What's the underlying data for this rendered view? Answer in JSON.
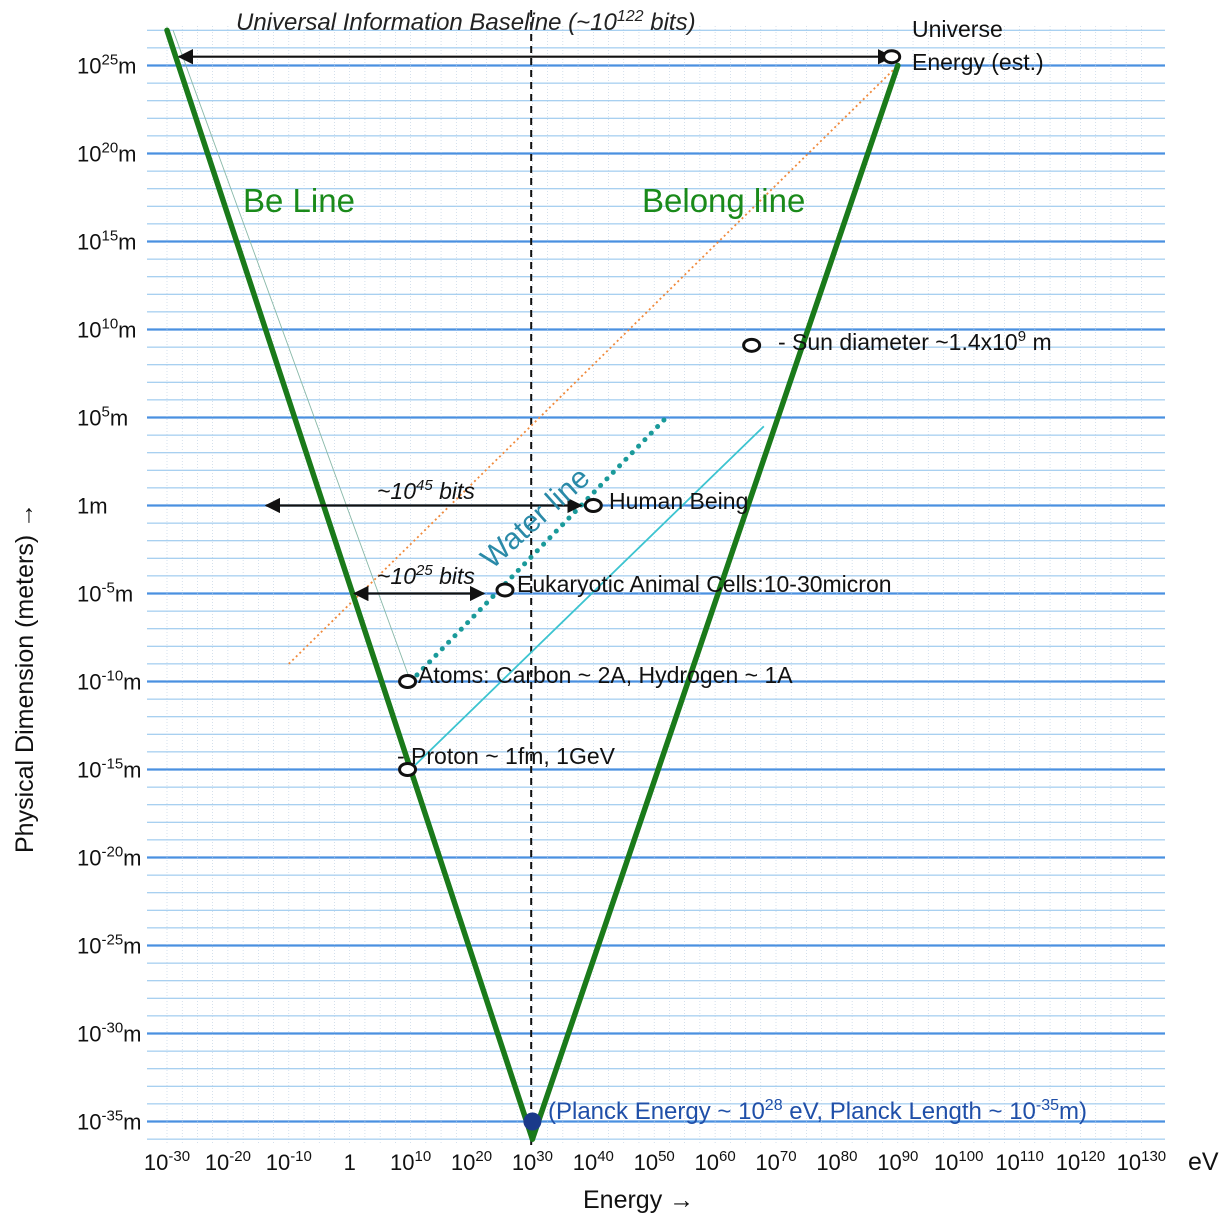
{
  "chart_data": {
    "type": "line",
    "title": "Universal Information Baseline (~10^122 bits)",
    "xlabel": "Energy →",
    "ylabel": "Physical Dimension (meters) →",
    "x_unit": "eV",
    "x_scale": "log10",
    "y_scale": "log10",
    "xlim_log10": [
      -31,
      135
    ],
    "ylim_log10": [
      -36.5,
      28
    ],
    "x_ticks": [
      {
        "base": "10",
        "exp": "-30",
        "value": -30
      },
      {
        "base": "10",
        "exp": "-20",
        "value": -20
      },
      {
        "base": "10",
        "exp": "-10",
        "value": -10
      },
      {
        "base": "1",
        "exp": "",
        "value": 0
      },
      {
        "base": "10",
        "exp": "10",
        "value": 10
      },
      {
        "base": "10",
        "exp": "20",
        "value": 20
      },
      {
        "base": "10",
        "exp": "30",
        "value": 30
      },
      {
        "base": "10",
        "exp": "40",
        "value": 40
      },
      {
        "base": "10",
        "exp": "50",
        "value": 50
      },
      {
        "base": "10",
        "exp": "60",
        "value": 60
      },
      {
        "base": "10",
        "exp": "70",
        "value": 70
      },
      {
        "base": "10",
        "exp": "80",
        "value": 80
      },
      {
        "base": "10",
        "exp": "90",
        "value": 90
      },
      {
        "base": "10",
        "exp": "100",
        "value": 100
      },
      {
        "base": "10",
        "exp": "110",
        "value": 110
      },
      {
        "base": "10",
        "exp": "120",
        "value": 120
      },
      {
        "base": "10",
        "exp": "130",
        "value": 130
      }
    ],
    "y_ticks": [
      {
        "base": "10",
        "exp": "25",
        "unit": "m",
        "value": 25
      },
      {
        "base": "10",
        "exp": "20",
        "unit": "m",
        "value": 20
      },
      {
        "base": "10",
        "exp": "15",
        "unit": "m",
        "value": 15
      },
      {
        "base": "10",
        "exp": "10",
        "unit": "m",
        "value": 10
      },
      {
        "base": "10",
        "exp": "5",
        "unit": "m",
        "value": 5
      },
      {
        "base": "1",
        "exp": "",
        "unit": "m",
        "value": 0
      },
      {
        "base": "10",
        "exp": "-5",
        "unit": "m",
        "value": -5
      },
      {
        "base": "10",
        "exp": "-10",
        "unit": "m",
        "value": -10
      },
      {
        "base": "10",
        "exp": "-15",
        "unit": "m",
        "value": -15
      },
      {
        "base": "10",
        "exp": "-20",
        "unit": "m",
        "value": -20
      },
      {
        "base": "10",
        "exp": "-25",
        "unit": "m",
        "value": -25
      },
      {
        "base": "10",
        "exp": "-30",
        "unit": "m",
        "value": -30
      },
      {
        "base": "10",
        "exp": "-35",
        "unit": "m",
        "value": -35
      }
    ],
    "series": [
      {
        "name": "Be Line",
        "color": "#1a7a1a",
        "points": [
          [
            -30,
            27
          ],
          [
            30,
            -36
          ]
        ]
      },
      {
        "name": "Belong line",
        "color": "#1a7a1a",
        "points": [
          [
            30,
            -36
          ],
          [
            90,
            25
          ]
        ]
      },
      {
        "name": "Water line",
        "color": "#1a9a9a",
        "style": "dotted",
        "points": [
          [
            10,
            -10
          ],
          [
            52,
            5
          ]
        ]
      }
    ],
    "reference_lines": [
      {
        "kind": "vertical_dashed",
        "x": 29.8,
        "color": "#111111"
      },
      {
        "kind": "diagonal_cyan",
        "points": [
          [
            10,
            -15
          ],
          [
            68,
            4.5
          ]
        ],
        "color": "#3cc4d0"
      },
      {
        "kind": "diagonal_dotted_orange",
        "points": [
          [
            -10,
            -9
          ],
          [
            90,
            25
          ]
        ],
        "color": "#f08a3c"
      },
      {
        "kind": "thin_teal",
        "points": [
          [
            -29,
            27
          ],
          [
            10,
            -10
          ]
        ],
        "color": "#88b8a8"
      }
    ],
    "arrows": [
      {
        "label": "Universal Information Baseline (~10^122 bits)",
        "y": 25.5,
        "x_from": -28,
        "x_to": 89
      },
      {
        "label": "~10^45 bits",
        "y": 0,
        "x_from": -13.7,
        "x_to": 38
      },
      {
        "label": "~10^25 bits",
        "y": -5,
        "x_from": 0.8,
        "x_to": 22
      }
    ],
    "points": [
      {
        "label": "Universe Energy (est.)",
        "x": 89,
        "y": 25.5
      },
      {
        "label": "Sun diameter ~1.4x10^9 m",
        "x": 66,
        "y": 9.1
      },
      {
        "label": "Human Being",
        "x": 40,
        "y": 0
      },
      {
        "label": "Eukaryotic Animal Cells:10-30micron",
        "x": 25.5,
        "y": -4.8
      },
      {
        "label": "Atoms: Carbon ~ 2A, Hydrogen ~ 1A",
        "x": 9.5,
        "y": -10
      },
      {
        "label": "Proton ~ 1fm, 1GeV",
        "x": 9.5,
        "y": -15
      },
      {
        "label": "Planck Energy ~ 10^28 eV, Planck Length ~ 10^-35m",
        "x": 30,
        "y": -35
      }
    ]
  },
  "labels": {
    "title": {
      "pre": "Universal Information Baseline (~10",
      "sup": "122",
      "post": " bits)"
    },
    "be_line": "Be Line",
    "belong_line": "Belong line",
    "water_line": "Water line",
    "universe_1": "Universe",
    "universe_2": "Energy (est.)",
    "sun": {
      "pre": "- Sun diameter ~1.4x10",
      "sup": "9",
      "post": " m"
    },
    "human": "Human Being",
    "eukaryotic": "Eukaryotic Animal Cells:10-30micron",
    "atoms": "Atoms: Carbon ~ 2A, Hydrogen ~ 1A",
    "proton": "- Proton ~ 1fm, 1GeV",
    "bits45": {
      "pre": "~10",
      "sup": "45",
      "post": " bits"
    },
    "bits25": {
      "pre": "~10",
      "sup": "25",
      "post": " bits"
    },
    "planck": {
      "a": "(Planck Energy ~ 10",
      "s1": "28",
      "b": " eV, Planck Length ~ 10",
      "s2": "-35",
      "c": "m)"
    },
    "x_unit": "eV",
    "xlabel": "Energy →",
    "ylabel": "Physical Dimension (meters) →"
  },
  "colors": {
    "grid_major": "#4a90e0",
    "grid_minor": "#8cc0ec",
    "grid_vertical": "#b8cce0",
    "green": "#1a7a1a",
    "water": "#1a9a9a",
    "cyan": "#3cc4d0",
    "orange": "#f08a3c",
    "planck_dot": "#1a3a8a"
  }
}
